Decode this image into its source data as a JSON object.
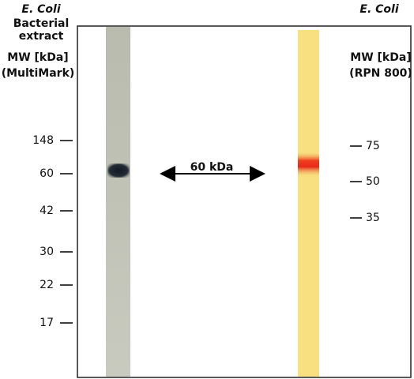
{
  "left_header": {
    "organism": "E. Coli",
    "line1": "Bacterial",
    "line2": "extract",
    "unit": "MW [kDa]",
    "marker": "(MultiMark)"
  },
  "right_header": {
    "organism": "E. Coli",
    "unit": "MW [kDa]",
    "marker": "(RPN 800)"
  },
  "left_markers": [
    148,
    60,
    42,
    30,
    22,
    17
  ],
  "right_markers": [
    75,
    50,
    35
  ],
  "annotation": "60 kDa"
}
